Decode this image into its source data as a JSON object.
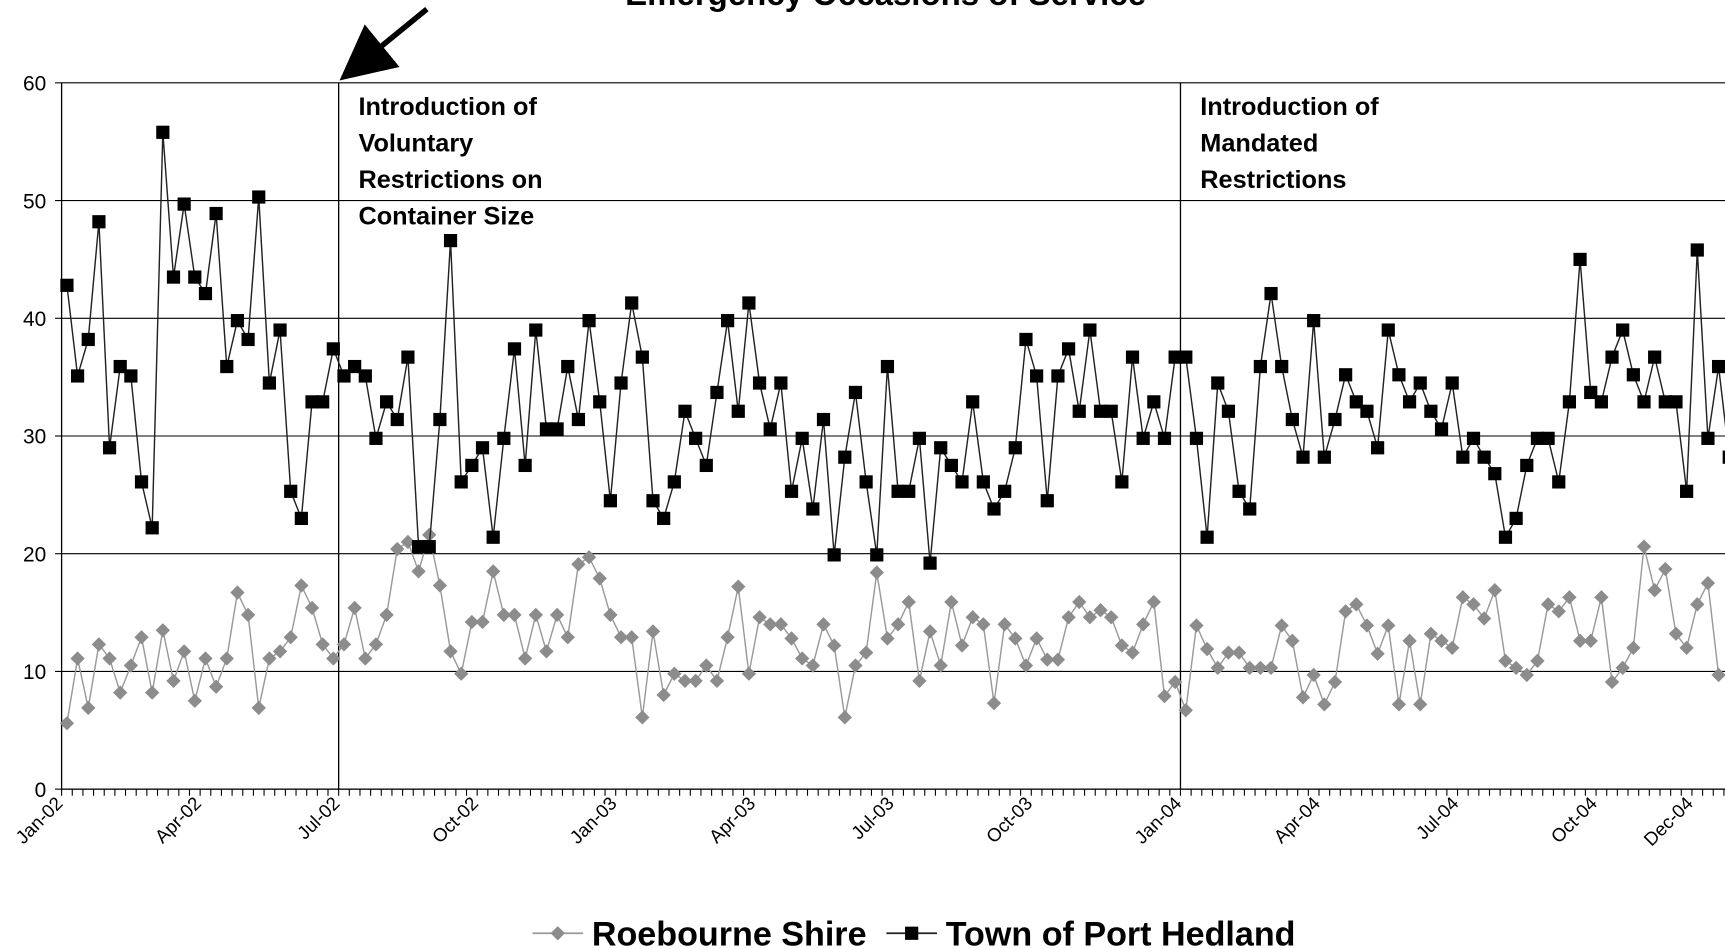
{
  "chart_data": {
    "type": "line",
    "title": "Emergency Occasions of Service",
    "categories": [
      "Jan-02",
      null,
      null,
      null,
      null,
      null,
      null,
      null,
      null,
      null,
      null,
      null,
      null,
      "Apr-02",
      null,
      null,
      null,
      null,
      null,
      null,
      null,
      null,
      null,
      null,
      null,
      null,
      "Jul-02",
      null,
      null,
      null,
      null,
      null,
      null,
      null,
      null,
      null,
      null,
      null,
      null,
      "Oct-02",
      null,
      null,
      null,
      null,
      null,
      null,
      null,
      null,
      null,
      null,
      null,
      null,
      "Jan-03",
      null,
      null,
      null,
      null,
      null,
      null,
      null,
      null,
      null,
      null,
      null,
      null,
      "Apr-03",
      null,
      null,
      null,
      null,
      null,
      null,
      null,
      null,
      null,
      null,
      null,
      null,
      "Jul-03",
      null,
      null,
      null,
      null,
      null,
      null,
      null,
      null,
      null,
      null,
      null,
      null,
      "Oct-03",
      null,
      null,
      null,
      null,
      null,
      null,
      null,
      null,
      null,
      null,
      null,
      null,
      null,
      "Jan-04",
      null,
      null,
      null,
      null,
      null,
      null,
      null,
      null,
      null,
      null,
      null,
      null,
      "Apr-04",
      null,
      null,
      null,
      null,
      null,
      null,
      null,
      null,
      null,
      null,
      null,
      null,
      "Jul-04",
      null,
      null,
      null,
      null,
      null,
      null,
      null,
      null,
      null,
      null,
      null,
      null,
      "Oct-04",
      null,
      null,
      null,
      null,
      null,
      null,
      null,
      null,
      "Dec-04",
      null,
      null,
      null
    ],
    "series": [
      {
        "name": "Roebourne Shire",
        "color": "#8c8c8c",
        "marker": "diamond",
        "values": [
          5.6,
          11.1,
          6.9,
          12.3,
          11.1,
          8.2,
          10.5,
          12.9,
          8.2,
          13.5,
          9.2,
          11.7,
          7.5,
          11.1,
          8.7,
          11.1,
          16.7,
          14.8,
          6.9,
          11.1,
          11.7,
          12.9,
          17.3,
          15.4,
          12.3,
          11.1,
          12.3,
          15.4,
          11.1,
          12.3,
          14.8,
          20.4,
          21.0,
          18.5,
          21.6,
          17.3,
          11.7,
          9.8,
          14.2,
          14.2,
          18.5,
          14.8,
          14.8,
          11.1,
          14.8,
          11.7,
          14.8,
          12.9,
          19.1,
          19.7,
          17.9,
          14.8,
          12.9,
          12.9,
          6.1,
          13.4,
          8.0,
          9.8,
          9.2,
          9.2,
          10.5,
          9.2,
          12.9,
          17.2,
          9.8,
          14.6,
          14.0,
          14.0,
          12.8,
          11.1,
          10.5,
          14.0,
          12.2,
          6.1,
          10.5,
          11.6,
          18.4,
          12.8,
          14.0,
          15.9,
          9.2,
          13.4,
          10.5,
          15.9,
          12.2,
          14.6,
          14.0,
          7.3,
          14.0,
          12.8,
          10.5,
          12.8,
          11.0,
          11.0,
          14.6,
          15.9,
          14.6,
          15.2,
          14.6,
          12.2,
          11.6,
          14.0,
          15.9,
          7.9,
          9.1,
          6.7,
          13.9,
          11.9,
          10.3,
          11.6,
          11.6,
          10.3,
          10.3,
          10.3,
          13.9,
          12.6,
          7.8,
          9.7,
          7.2,
          9.1,
          15.1,
          15.7,
          13.9,
          11.5,
          13.9,
          7.2,
          12.6,
          7.2,
          13.2,
          12.6,
          12.0,
          16.3,
          15.7,
          14.5,
          16.9,
          10.9,
          10.3,
          9.7,
          10.9,
          15.7,
          15.1,
          16.3,
          12.6,
          12.6,
          16.3,
          9.1,
          10.3,
          12.0,
          20.6,
          16.9,
          18.7,
          13.2,
          12.0,
          15.7,
          17.5,
          9.7,
          null
        ]
      },
      {
        "name": "Town of Port Hedland",
        "color": "#000000",
        "marker": "square",
        "values": [
          42.8,
          35.1,
          38.2,
          48.2,
          29.0,
          35.9,
          35.1,
          26.1,
          22.2,
          55.8,
          43.5,
          49.7,
          43.5,
          42.1,
          48.9,
          35.9,
          39.8,
          38.2,
          50.3,
          34.5,
          39.0,
          25.3,
          23.0,
          32.9,
          32.9,
          37.4,
          35.1,
          35.9,
          35.1,
          29.8,
          32.9,
          31.4,
          36.7,
          20.6,
          20.6,
          31.4,
          46.6,
          26.1,
          27.5,
          29.0,
          21.4,
          29.8,
          37.4,
          27.5,
          39.0,
          30.6,
          30.6,
          35.9,
          31.4,
          39.8,
          32.9,
          24.5,
          34.5,
          41.3,
          36.7,
          24.5,
          23.0,
          26.1,
          32.1,
          29.8,
          27.5,
          33.7,
          39.8,
          32.1,
          41.3,
          34.5,
          30.6,
          34.5,
          25.3,
          29.8,
          23.8,
          31.4,
          19.9,
          28.2,
          33.7,
          26.1,
          19.9,
          35.9,
          25.3,
          25.3,
          29.8,
          19.2,
          29.0,
          27.5,
          26.1,
          32.9,
          26.1,
          23.8,
          25.3,
          29.0,
          38.2,
          35.1,
          24.5,
          35.1,
          37.4,
          32.1,
          39.0,
          32.1,
          32.1,
          26.1,
          36.7,
          29.8,
          32.9,
          29.8,
          36.7,
          36.7,
          29.8,
          21.4,
          34.5,
          32.1,
          25.3,
          23.8,
          35.9,
          42.1,
          35.9,
          31.4,
          28.2,
          39.8,
          28.2,
          31.4,
          35.2,
          32.9,
          32.1,
          29.0,
          39.0,
          35.2,
          32.9,
          34.5,
          32.1,
          30.6,
          34.5,
          28.2,
          29.8,
          28.2,
          26.8,
          21.4,
          23.0,
          27.5,
          29.8,
          29.8,
          26.1,
          32.9,
          45.0,
          33.7,
          32.9,
          36.7,
          39.0,
          35.2,
          32.9,
          36.7,
          32.9,
          32.9,
          25.3,
          45.8,
          29.8,
          35.9,
          28.2
        ]
      }
    ],
    "ylim": [
      0,
      60
    ],
    "yticks": [
      0,
      10,
      20,
      30,
      40,
      50,
      60
    ],
    "grid": true,
    "legend": "bottom",
    "annotations": [
      {
        "category": "Jul-02",
        "lines": [
          "Introduction of",
          "Voluntary",
          "Restrictions on",
          "Container Size"
        ]
      },
      {
        "category": "Jan-04",
        "lines": [
          "Introduction of",
          "Mandated",
          "Restrictions"
        ]
      }
    ]
  }
}
